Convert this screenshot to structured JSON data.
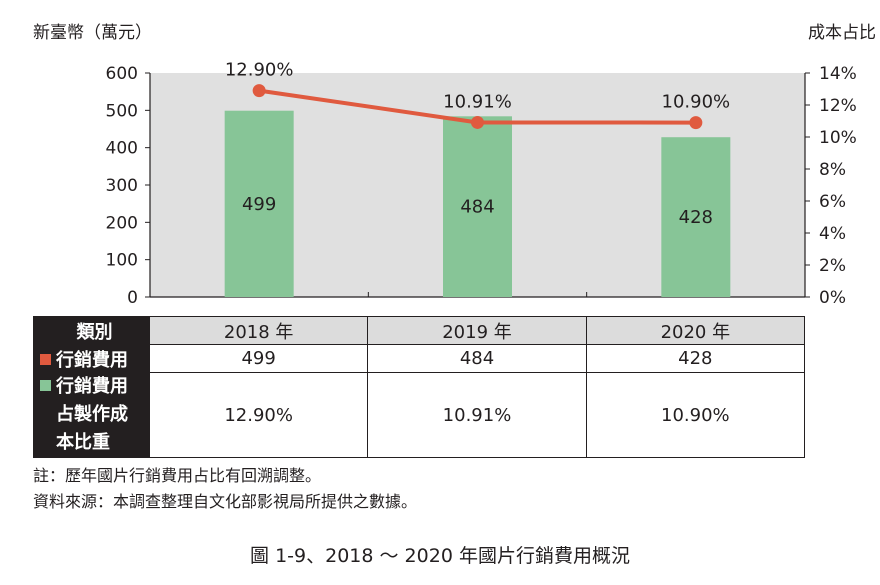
{
  "chart_data": {
    "type": "bar+line",
    "categories": [
      "2018 年",
      "2019 年",
      "2020 年"
    ],
    "y_left_label": "新臺幣（萬元）",
    "y_right_label": "成本占比",
    "y_left_ticks": [
      "600",
      "500",
      "400",
      "300",
      "200",
      "100",
      "0"
    ],
    "y_right_ticks": [
      "14%",
      "12%",
      "10%",
      "8%",
      "6%",
      "4%",
      "2%",
      "0%"
    ],
    "ylim_left": [
      0,
      600
    ],
    "ylim_right": [
      0,
      14
    ],
    "bars": {
      "values": [
        499,
        484,
        428
      ],
      "labels": [
        "499",
        "484",
        "428"
      ],
      "color": "#87c597"
    },
    "line": {
      "values": [
        12.9,
        10.91,
        10.9
      ],
      "labels": [
        "12.90%",
        "10.91%",
        "10.90%"
      ],
      "color": "#e05a3f"
    },
    "plot_bg": "#e0e0e0",
    "grid": false
  },
  "table": {
    "header_label": "類別",
    "row1_label": "行銷費用",
    "row1_color": "#e05a3f",
    "row1_values": [
      "499",
      "484",
      "428"
    ],
    "row2_label_lines": [
      "行銷費用",
      "占製作成",
      "本比重"
    ],
    "row2_color": "#87c597",
    "row2_values": [
      "12.90%",
      "10.91%",
      "10.90%"
    ]
  },
  "notes": {
    "note1": "註：歷年國片行銷費用占比有回溯調整。",
    "note2": "資料來源：本調查整理自文化部影視局所提供之數據。"
  },
  "caption": "圖 1-9、2018 ～ 2020 年國片行銷費用概況"
}
